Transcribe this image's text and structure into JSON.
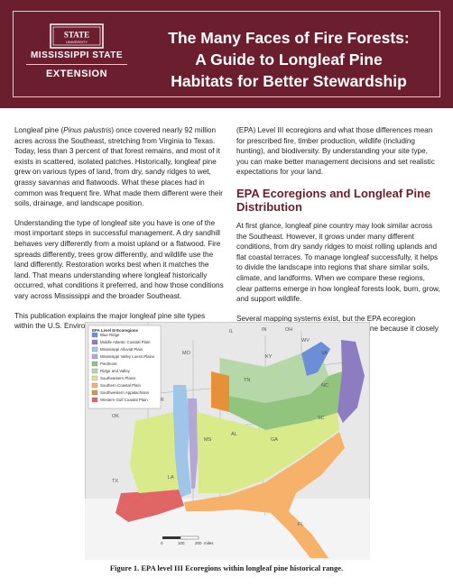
{
  "header": {
    "logo": {
      "seal_text": "STATE",
      "seal_subtext": "UNIVERSITY",
      "university": "MISSISSIPPI STATE",
      "extension": "EXTENSION"
    },
    "title_lines": [
      "The Many Faces of Fire Forests:",
      "A Guide to Longleaf Pine",
      "Habitats for Better Stewardship"
    ]
  },
  "body": {
    "left_column": [
      {
        "before": "Longleaf pine (",
        "italic": "Pinus palustris",
        "after": ") once covered nearly 92 million acres across the Southeast, stretching from Virginia to Texas. Today, less than 3 percent of that forest remains, and most of it exists in scattered, isolated patches. Historically, longleaf pine grew on various types of land, from dry, sandy ridges to wet, grassy savannas and flatwoods. What these places had in common was frequent fire. What made them different were their soils, drainage, and landscape position."
      },
      "Understanding the type of longleaf site you have is one of the most important steps in successful management. A dry sandhill behaves very differently from a moist upland or a flatwood. Fire spreads differently, trees grow differently, and wildlife use the land differently. Restoration works best when it matches the land. That means understanding where longleaf historically occurred, what conditions it preferred, and how those conditions vary across Mississippi and the broader Southeast.",
      "This publication explains the major longleaf pine site types within the U.S. Environmental Protection Agency"
    ],
    "right_column_intro": "(EPA) Level III ecoregions and what those differences mean for prescribed fire, timber production, wildlife (including hunting), and biodiversity. By understanding your site type, you can make better management decisions and set realistic expectations for your land.",
    "section_heading": "EPA Ecoregions and Longleaf Pine Distribution",
    "right_column_paragraphs": [
      "At first glance, longleaf pine country may look similar across the Southeast. However, it grows under many different conditions, from dry sandy ridges to moist rolling uplands and flat coastal terraces. To manage longleaf successfully, it helps to divide the landscape into regions that share similar soils, climate, and landforms. When we compare these regions, clear patterns emerge in how longleaf forests look, burn, grow, and support wildlife.",
      "Several mapping systems exist, but the EPA ecoregion system is especially useful for longleaf pine because it closely"
    ]
  },
  "figure": {
    "legend_title": "EPA Level III Ecoregions",
    "legend_items": [
      {
        "label": "Blue Ridge",
        "color": "#6a8fd6"
      },
      {
        "label": "Middle Atlantic Coastal Plain",
        "color": "#8e7cc3"
      },
      {
        "label": "Mississippi Alluvial Plain",
        "color": "#9fc5e8"
      },
      {
        "label": "Mississippi Valley Loess Plains",
        "color": "#b4a7d6"
      },
      {
        "label": "Piedmont",
        "color": "#93c47d"
      },
      {
        "label": "Ridge and Valley",
        "color": "#b6d7a8"
      },
      {
        "label": "Southeastern Plains",
        "color": "#d9ea8a"
      },
      {
        "label": "Southern Coastal Plain",
        "color": "#f6b26b"
      },
      {
        "label": "Southwestern Appalachians",
        "color": "#e69138"
      },
      {
        "label": "Western Gulf Coastal Plain",
        "color": "#e06666"
      }
    ],
    "state_labels": [
      "IL",
      "IN",
      "OH",
      "WV",
      "VA",
      "KY",
      "TN",
      "NC",
      "SC",
      "AR",
      "MS",
      "AL",
      "GA",
      "LA",
      "TX",
      "OK",
      "MO",
      "FL"
    ],
    "scale_ticks": [
      "0",
      "100",
      "200"
    ],
    "scale_unit": "miles",
    "caption": "Figure 1. EPA level III Ecoregions within longleaf pine historical range."
  },
  "colors": {
    "brand": "#6b1e2e",
    "map_background": "#e8e8e8",
    "map_outline": "#8a8a8a"
  }
}
